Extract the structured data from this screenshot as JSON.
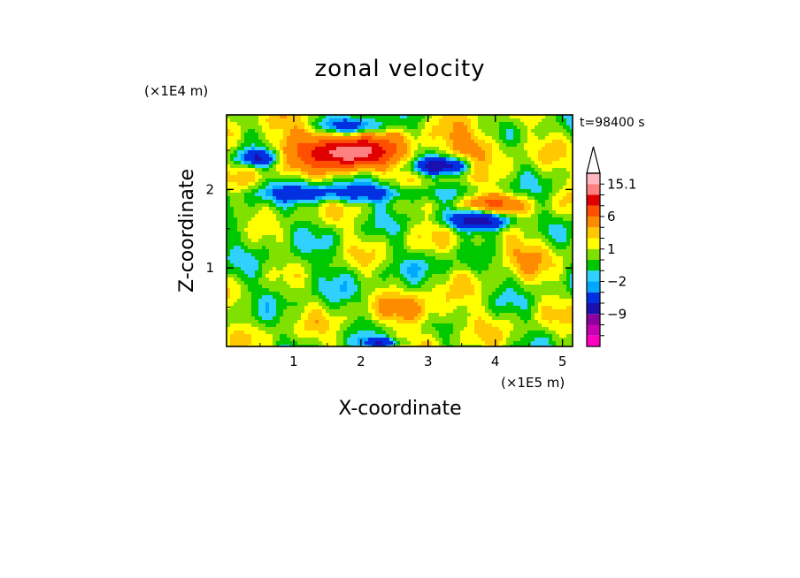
{
  "chart_data": {
    "type": "heatmap",
    "title": "zonal velocity",
    "xlabel": "X-coordinate",
    "ylabel": "Z-coordinate",
    "x_scale_label": "(×1E5 m)",
    "y_scale_label": "(×1E4 m)",
    "time_label": "t=98400 s",
    "xlim": [
      0,
      5.15
    ],
    "ylim": [
      0,
      2.95
    ],
    "x_ticks": [
      1,
      2,
      3,
      4,
      5
    ],
    "y_ticks": [
      1,
      2
    ],
    "colorbar": {
      "levels": [
        -15,
        -12,
        -9,
        -6,
        -3,
        -2,
        -1,
        0,
        1,
        2,
        3,
        6,
        9,
        12,
        15.1
      ],
      "colors": [
        "#ff00c0",
        "#c800b4",
        "#8c00a0",
        "#1a10b0",
        "#0030e0",
        "#00a8ff",
        "#30d0ff",
        "#00c800",
        "#80e000",
        "#ffff00",
        "#ffc800",
        "#ff8c00",
        "#ff5000",
        "#e00000",
        "#ff8080",
        "#ffb8c0"
      ],
      "labeled_values": [
        {
          "label": "15.1",
          "value": 15.1
        },
        {
          "label": "6",
          "value": 6
        },
        {
          "label": "1",
          "value": 1
        },
        {
          "label": "−2",
          "value": -2
        },
        {
          "label": "−9",
          "value": -9
        }
      ]
    },
    "features": [
      {
        "x": 1.9,
        "z": 2.45,
        "value": 10,
        "rx": 0.55,
        "rz": 0.18
      },
      {
        "x": 1.55,
        "z": 2.55,
        "value": 5,
        "rx": 0.9,
        "rz": 0.28
      },
      {
        "x": 0.45,
        "z": 2.4,
        "value": -7,
        "rx": 0.28,
        "rz": 0.1
      },
      {
        "x": 1.9,
        "z": 2.8,
        "value": -6,
        "rx": 0.5,
        "rz": 0.12
      },
      {
        "x": 3.8,
        "z": 1.6,
        "value": -9,
        "rx": 0.45,
        "rz": 0.12
      },
      {
        "x": 3.9,
        "z": 1.82,
        "value": 6,
        "rx": 0.5,
        "rz": 0.12
      },
      {
        "x": 3.2,
        "z": 2.3,
        "value": -8,
        "rx": 0.4,
        "rz": 0.1
      },
      {
        "x": 1.8,
        "z": 1.95,
        "value": -5,
        "rx": 1.3,
        "rz": 0.12
      },
      {
        "x": 3.6,
        "z": 2.55,
        "value": 3,
        "rx": 0.6,
        "rz": 0.2
      },
      {
        "x": 0.6,
        "z": 1.5,
        "value": -1,
        "rx": 0.6,
        "rz": 0.2
      },
      {
        "x": 4.3,
        "z": 1.2,
        "value": 2,
        "rx": 0.6,
        "rz": 0.2
      },
      {
        "x": 2.9,
        "z": 0.45,
        "value": 3,
        "rx": 0.5,
        "rz": 0.2
      },
      {
        "x": 1.2,
        "z": 0.9,
        "value": -1,
        "rx": 0.9,
        "rz": 0.3
      },
      {
        "x": 3.3,
        "z": 1.05,
        "value": -1,
        "rx": 0.6,
        "rz": 0.2
      },
      {
        "x": 2.3,
        "z": 0.05,
        "value": -5,
        "rx": 0.3,
        "rz": 0.06
      }
    ]
  }
}
